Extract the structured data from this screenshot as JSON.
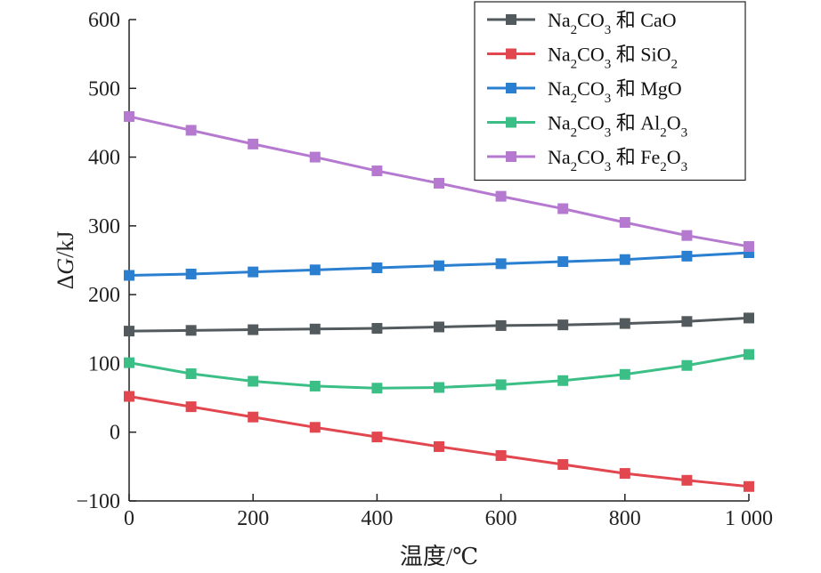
{
  "chart_data": {
    "type": "line",
    "xlabel": "温度/℃",
    "ylabel_prefix": "Δ",
    "ylabel_var": "G",
    "ylabel_unit": "/kJ",
    "xlim": [
      0,
      1000
    ],
    "ylim": [
      -100,
      600
    ],
    "x_ticks": [
      0,
      200,
      400,
      600,
      800,
      1000
    ],
    "x_tick_labels": [
      "0",
      "200",
      "400",
      "600",
      "800",
      "1 000"
    ],
    "y_ticks": [
      -100,
      0,
      100,
      200,
      300,
      400,
      500,
      600
    ],
    "y_tick_labels": [
      "−100",
      "0",
      "100",
      "200",
      "300",
      "400",
      "500",
      "600"
    ],
    "x": [
      0,
      100,
      200,
      300,
      400,
      500,
      600,
      700,
      800,
      900,
      1000
    ],
    "grid": false,
    "legend_position": "top-right",
    "series": [
      {
        "name": "Na₂CO₃ 和 CaO",
        "legend_parts": [
          [
            "Na",
            ""
          ],
          [
            "2",
            "sub"
          ],
          [
            "CO",
            ""
          ],
          [
            "3",
            "sub"
          ],
          [
            " 和 CaO",
            ""
          ]
        ],
        "color": "#535a5e",
        "values": [
          147,
          148,
          149,
          150,
          151,
          153,
          155,
          156,
          158,
          161,
          166
        ]
      },
      {
        "name": "Na₂CO₃ 和 SiO₂",
        "legend_parts": [
          [
            "Na",
            ""
          ],
          [
            "2",
            "sub"
          ],
          [
            "CO",
            ""
          ],
          [
            "3",
            "sub"
          ],
          [
            " 和 SiO",
            ""
          ],
          [
            "2",
            "sub"
          ]
        ],
        "color": "#e2474f",
        "values": [
          52,
          37,
          22,
          7,
          -7,
          -21,
          -34,
          -47,
          -60,
          -70,
          -79
        ]
      },
      {
        "name": "Na₂CO₃ 和 MgO",
        "legend_parts": [
          [
            "Na",
            ""
          ],
          [
            "2",
            "sub"
          ],
          [
            "CO",
            ""
          ],
          [
            "3",
            "sub"
          ],
          [
            " 和 MgO",
            ""
          ]
        ],
        "color": "#2a7fd0",
        "values": [
          228,
          230,
          233,
          236,
          239,
          242,
          245,
          248,
          251,
          256,
          261
        ]
      },
      {
        "name": "Na₂CO₃ 和 Al₂O₃",
        "legend_parts": [
          [
            "Na",
            ""
          ],
          [
            "2",
            "sub"
          ],
          [
            "CO",
            ""
          ],
          [
            "3",
            "sub"
          ],
          [
            " 和 Al",
            ""
          ],
          [
            "2",
            "sub"
          ],
          [
            "O",
            ""
          ],
          [
            "3",
            "sub"
          ]
        ],
        "color": "#3cbf86",
        "values": [
          101,
          85,
          74,
          67,
          64,
          65,
          69,
          75,
          84,
          97,
          113
        ]
      },
      {
        "name": "Na₂CO₃ 和 Fe₂O₃",
        "legend_parts": [
          [
            "Na",
            ""
          ],
          [
            "2",
            "sub"
          ],
          [
            "CO",
            ""
          ],
          [
            "3",
            "sub"
          ],
          [
            " 和 Fe",
            ""
          ],
          [
            "2",
            "sub"
          ],
          [
            "O",
            ""
          ],
          [
            "3",
            "sub"
          ]
        ],
        "color": "#b57ad0",
        "values": [
          459,
          439,
          419,
          400,
          380,
          362,
          343,
          325,
          305,
          286,
          270
        ]
      }
    ]
  }
}
